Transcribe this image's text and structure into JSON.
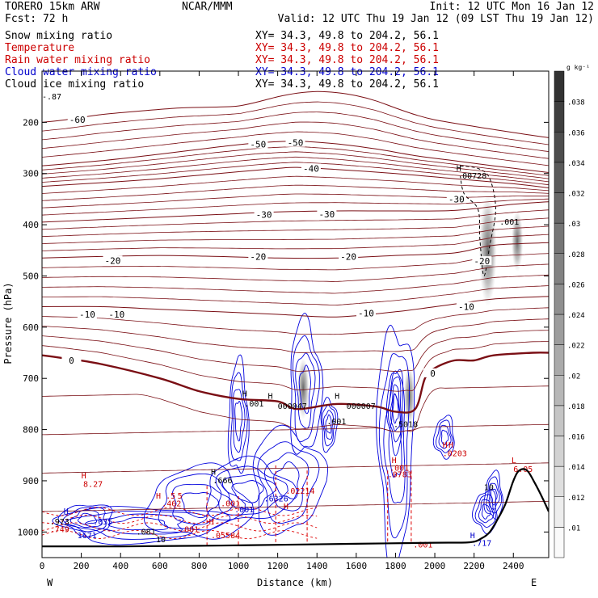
{
  "header": {
    "model": "TORERO  15km ARW",
    "center": "NCAR/MMM",
    "init": "Init: 12 UTC Mon 16 Jan 12",
    "fcst": "Fcst:   72 h",
    "valid": "Valid: 12 UTC Thu 19 Jan 12 (09 LST Thu 19 Jan 12)"
  },
  "fields": [
    {
      "name": "Snow mixing ratio",
      "xy": "XY=  34.3, 49.8 to 204.2, 56.1",
      "color": "#000000"
    },
    {
      "name": "Temperature",
      "xy": "XY=  34.3, 49.8 to 204.2, 56.1",
      "color": "#cc0000"
    },
    {
      "name": "Rain water mixing ratio",
      "xy": "XY=  34.3, 49.8 to 204.2, 56.1",
      "color": "#cc0000"
    },
    {
      "name": "Cloud water mixing ratio",
      "xy": "XY=  34.3, 49.8 to 204.2, 56.1",
      "color": "#0000cc"
    },
    {
      "name": "Cloud ice mixing ratio",
      "xy": "XY=  34.3, 49.8 to 204.2, 56.1",
      "color": "#000000"
    }
  ],
  "colors": {
    "temperature": "#7a0e14",
    "rain": "#dd0000",
    "cloud_water": "#0000dd",
    "cloud_ice": "#000000",
    "terrain": "#000000"
  },
  "chart_data": {
    "type": "cross-section",
    "xlabel": "Distance (km)",
    "ylabel": "Pressure (hPa)",
    "xlim": [
      0,
      2580
    ],
    "ylim": [
      1050,
      100
    ],
    "x_ticks": [
      0,
      200,
      400,
      600,
      800,
      1000,
      1200,
      1400,
      1600,
      1800,
      2000,
      2200,
      2400
    ],
    "y_ticks": [
      200,
      300,
      400,
      500,
      600,
      700,
      800,
      900,
      1000
    ],
    "endpoints": {
      "left": "W",
      "right": "E"
    },
    "surface_pressure": {
      "x": [
        0,
        400,
        800,
        1200,
        1600,
        2000,
        2180,
        2240,
        2280,
        2320,
        2360,
        2400,
        2430,
        2470,
        2510,
        2550,
        2580
      ],
      "p": [
        1028,
        1028,
        1027,
        1025,
        1023,
        1021,
        1020,
        1012,
        1000,
        975,
        945,
        900,
        880,
        880,
        905,
        935,
        960
      ]
    },
    "temperature_contours": [
      {
        "label": "-60",
        "x": [
          0,
          120,
          300,
          500,
          700,
          900,
          1000,
          1100,
          1200,
          1300,
          1400,
          1500,
          1600,
          1700,
          1800,
          1900,
          2000,
          2200,
          2400,
          2580
        ],
        "p": [
          200,
          195,
          185,
          178,
          172,
          170,
          168,
          160,
          150,
          143,
          140,
          142,
          148,
          158,
          172,
          185,
          195,
          208,
          220,
          230
        ]
      },
      {
        "label": "-50",
        "x": [
          0,
          300,
          600,
          900,
          1100,
          1300,
          1500,
          1700,
          1900,
          2100,
          2300,
          2580
        ],
        "p": [
          285,
          275,
          262,
          248,
          240,
          237,
          242,
          252,
          265,
          275,
          285,
          298
        ]
      },
      {
        "label": "-40",
        "x": [
          0,
          300,
          600,
          900,
          1200,
          1300,
          1500,
          1800,
          2100,
          2400,
          2580
        ],
        "p": [
          325,
          318,
          310,
          300,
          290,
          288,
          292,
          300,
          310,
          320,
          328
        ]
      },
      {
        "label": "-30",
        "x": [
          0,
          300,
          600,
          900,
          1200,
          1500,
          1800,
          2100,
          2400,
          2580
        ],
        "p": [
          395,
          390,
          385,
          380,
          375,
          373,
          373,
          372,
          360,
          355
        ]
      },
      {
        "label": "-20",
        "x": [
          0,
          300,
          600,
          900,
          1200,
          1500,
          1800,
          2100,
          2300,
          2580
        ],
        "p": [
          465,
          462,
          460,
          462,
          465,
          465,
          460,
          455,
          440,
          435
        ]
      },
      {
        "label": "-10",
        "x": [
          0,
          300,
          600,
          900,
          1200,
          1500,
          1800,
          2100,
          2300,
          2580
        ],
        "p": [
          560,
          560,
          565,
          570,
          575,
          580,
          570,
          555,
          545,
          540
        ]
      },
      {
        "label": "0",
        "x": [
          0,
          100,
          300,
          600,
          800,
          1000,
          1200,
          1300,
          1500,
          1700,
          1800,
          1900,
          1950,
          2000,
          2100,
          2200,
          2300,
          2500,
          2580
        ],
        "p": [
          655,
          660,
          672,
          700,
          725,
          740,
          745,
          760,
          750,
          755,
          765,
          760,
          700,
          680,
          665,
          665,
          655,
          650,
          650
        ]
      }
    ],
    "temperature_labels": [
      {
        "text": "-60",
        "x": 180,
        "p": 195
      },
      {
        "text": "-50",
        "x": 1100,
        "p": 243
      },
      {
        "text": "-50",
        "x": 1290,
        "p": 240
      },
      {
        "text": "-40",
        "x": 1370,
        "p": 290
      },
      {
        "text": "-30",
        "x": 1130,
        "p": 380
      },
      {
        "text": "-30",
        "x": 1450,
        "p": 379
      },
      {
        "text": "-30",
        "x": 2110,
        "p": 350
      },
      {
        "text": "-20",
        "x": 360,
        "p": 470
      },
      {
        "text": "-20",
        "x": 1100,
        "p": 462
      },
      {
        "text": "-20",
        "x": 1560,
        "p": 462
      },
      {
        "text": "-20",
        "x": 2240,
        "p": 471
      },
      {
        "text": "-10",
        "x": 230,
        "p": 575
      },
      {
        "text": "-10",
        "x": 380,
        "p": 575
      },
      {
        "text": "-10",
        "x": 1650,
        "p": 573
      },
      {
        "text": "-10",
        "x": 2160,
        "p": 560
      },
      {
        "text": "0",
        "x": 150,
        "p": 665
      },
      {
        "text": "0",
        "x": 1990,
        "p": 690
      }
    ],
    "cloud_ice_shading": [
      {
        "x": 1330,
        "p": 720,
        "rx": 30,
        "rp": 60
      },
      {
        "x": 1870,
        "p": 735,
        "rx": 28,
        "rp": 60
      },
      {
        "x": 2270,
        "p": 450,
        "rx": 45,
        "rp": 110
      },
      {
        "x": 2420,
        "p": 432,
        "rx": 30,
        "rp": 60
      }
    ],
    "cloud_water_regions": [
      {
        "x": 1000,
        "p": 780,
        "rx": 50,
        "rp": 110
      },
      {
        "x": 1340,
        "p": 720,
        "rx": 80,
        "rp": 130
      },
      {
        "x": 1460,
        "p": 790,
        "rx": 40,
        "rp": 50
      },
      {
        "x": 1800,
        "p": 820,
        "rx": 90,
        "rp": 230
      },
      {
        "x": 1800,
        "p": 760,
        "rx": 40,
        "rp": 80
      },
      {
        "x": 2050,
        "p": 815,
        "rx": 50,
        "rp": 40
      },
      {
        "x": 800,
        "p": 945,
        "rx": 260,
        "rp": 70
      },
      {
        "x": 1050,
        "p": 920,
        "rx": 220,
        "rp": 60
      },
      {
        "x": 1250,
        "p": 900,
        "rx": 180,
        "rp": 100
      },
      {
        "x": 500,
        "p": 985,
        "rx": 420,
        "rp": 35
      },
      {
        "x": 230,
        "p": 975,
        "rx": 130,
        "rp": 30
      },
      {
        "x": 2260,
        "p": 960,
        "rx": 60,
        "rp": 40
      },
      {
        "x": 2300,
        "p": 930,
        "rx": 45,
        "rp": 45
      }
    ],
    "rain_columns": [
      {
        "x": 840,
        "p_top": 910,
        "p_bottom": 1027
      },
      {
        "x": 1000,
        "p_top": 930,
        "p_bottom": 1027
      },
      {
        "x": 1190,
        "p_top": 870,
        "p_bottom": 1025
      },
      {
        "x": 1350,
        "p_top": 880,
        "p_bottom": 1025
      },
      {
        "x": 1760,
        "p_top": 880,
        "p_bottom": 1022
      },
      {
        "x": 1880,
        "p_top": 880,
        "p_bottom": 1021
      }
    ],
    "annotations": [
      {
        "text": "H",
        "x": 1020,
        "p": 735,
        "color": "black"
      },
      {
        "text": ".001",
        "x": 1030,
        "p": 755,
        "color": "black"
      },
      {
        "text": "H",
        "x": 1150,
        "p": 740,
        "color": "black"
      },
      {
        "text": "000047",
        "x": 1200,
        "p": 760,
        "color": "black"
      },
      {
        "text": "H",
        "x": 1490,
        "p": 740,
        "color": "black"
      },
      {
        "text": "000007",
        "x": 1550,
        "p": 760,
        "color": "black"
      },
      {
        "text": ".001",
        "x": 1450,
        "p": 790,
        "color": "black"
      },
      {
        "text": ".5018",
        "x": 1790,
        "p": 795,
        "color": "black"
      },
      {
        "text": "H",
        "x": 2110,
        "p": 295,
        "color": "black"
      },
      {
        "text": "00728",
        "x": 2140,
        "p": 310,
        "color": "black"
      },
      {
        "text": ".001",
        "x": 2330,
        "p": 400,
        "color": "black"
      },
      {
        "text": "H",
        "x": 200,
        "p": 895,
        "color": "red"
      },
      {
        "text": "8.27",
        "x": 210,
        "p": 912,
        "color": "red"
      },
      {
        "text": "H",
        "x": 860,
        "p": 888,
        "color": "black"
      },
      {
        "text": ".666",
        "x": 870,
        "p": 905,
        "color": "black"
      },
      {
        "text": "H",
        "x": 580,
        "p": 935,
        "color": "red"
      },
      {
        "text": ".5",
        "x": 630,
        "p": 935,
        "color": "red"
      },
      {
        "text": "5",
        "x": 690,
        "p": 935,
        "color": "red"
      },
      {
        "text": ".462",
        "x": 610,
        "p": 950,
        "color": "red"
      },
      {
        "text": ".02214",
        "x": 1240,
        "p": 925,
        "color": "red"
      },
      {
        "text": ".6326",
        "x": 1130,
        "p": 940,
        "color": "blue"
      },
      {
        "text": ".001",
        "x": 980,
        "p": 962,
        "color": "blue"
      },
      {
        "text": ".001",
        "x": 910,
        "p": 950,
        "color": "red"
      },
      {
        "text": "H",
        "x": 1230,
        "p": 955,
        "color": "red"
      },
      {
        "text": "H",
        "x": 850,
        "p": 985,
        "color": "red"
      },
      {
        "text": "H",
        "x": 110,
        "p": 965,
        "color": "blue"
      },
      {
        "text": ".973",
        "x": 40,
        "p": 985,
        "color": "black"
      },
      {
        "text": ".035",
        "x": 260,
        "p": 985,
        "color": "blue"
      },
      {
        "text": ".749",
        "x": 40,
        "p": 1000,
        "color": "red"
      },
      {
        "text": "1671",
        "x": 180,
        "p": 1012,
        "color": "blue"
      },
      {
        "text": ".001",
        "x": 700,
        "p": 1000,
        "color": "red"
      },
      {
        "text": ".081",
        "x": 480,
        "p": 1005,
        "color": "black"
      },
      {
        "text": ".05584",
        "x": 860,
        "p": 1012,
        "color": "red"
      },
      {
        "text": "10",
        "x": 580,
        "p": 1020,
        "color": "black"
      },
      {
        "text": "H",
        "x": 1780,
        "p": 865,
        "color": "red"
      },
      {
        "text": ".001",
        "x": 1770,
        "p": 880,
        "color": "red"
      },
      {
        "text": ".0783",
        "x": 1760,
        "p": 893,
        "color": "red"
      },
      {
        "text": "H",
        "x": 2040,
        "p": 835,
        "color": "red"
      },
      {
        "text": "H",
        "x": 2070,
        "p": 835,
        "color": "red"
      },
      {
        "text": ".0203",
        "x": 2040,
        "p": 852,
        "color": "red"
      },
      {
        "text": ".001",
        "x": 1890,
        "p": 1030,
        "color": "red"
      },
      {
        "text": "10",
        "x": 2250,
        "p": 918,
        "color": "black"
      },
      {
        "text": "L",
        "x": 2390,
        "p": 865,
        "color": "red"
      },
      {
        "text": "6.05",
        "x": 2400,
        "p": 883,
        "color": "red"
      },
      {
        "text": "H",
        "x": 2180,
        "p": 1012,
        "color": "blue"
      },
      {
        "text": ".717",
        "x": 2190,
        "p": 1027,
        "color": "blue"
      },
      {
        "text": "-.87",
        "x": 0,
        "p": 155,
        "color": "black"
      }
    ],
    "colorbar": {
      "unit": "g kg⁻¹",
      "levels": [
        ".01",
        ".012",
        ".014",
        ".016",
        ".018",
        ".02",
        ".022",
        ".024",
        ".026",
        ".028",
        ".03",
        ".032",
        ".034",
        ".036",
        ".038"
      ]
    }
  }
}
